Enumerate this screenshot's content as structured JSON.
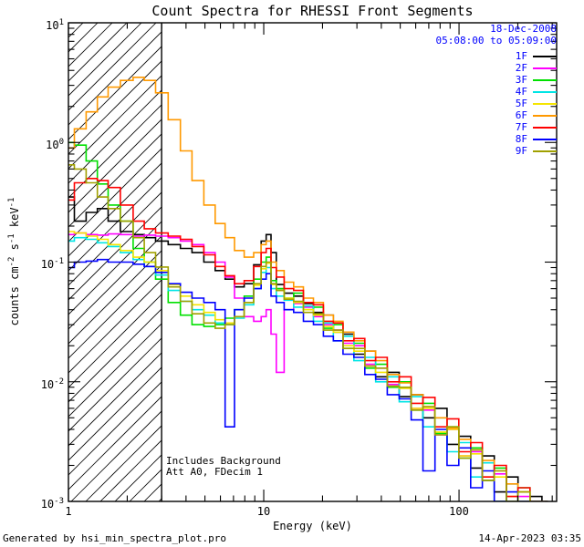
{
  "title": "Count Spectra for RHESSI Front Segments",
  "date_label": "18-Dec-2008",
  "time_range": "05:08:00 to 05:09:00",
  "annotations": {
    "line1": "Includes Background",
    "line2": "Att A0, FDecim 1"
  },
  "footer": {
    "left": "Generated by hsi_min_spectra_plot.pro",
    "right": "14-Apr-2023 03:35"
  },
  "axes": {
    "xlabel": "Energy (keV)",
    "ylabel_parts": {
      "p1": "counts cm",
      "e1": "-2",
      "p2": " s",
      "e2": "-1",
      "p3": " keV",
      "e3": "-1"
    },
    "xtick_labels": [
      "1",
      "10",
      "100"
    ],
    "ytick_labels": [
      {
        "base": "10",
        "exp": "1"
      },
      {
        "base": "10",
        "exp": "0"
      },
      {
        "base": "10",
        "exp": "-1"
      },
      {
        "base": "10",
        "exp": "-2"
      },
      {
        "base": "10",
        "exp": "-3"
      }
    ]
  },
  "colors": {
    "annotation_blue": "#0000ff",
    "axis_black": "#000000"
  },
  "chart_data": {
    "type": "line",
    "title": "Count Spectra for RHESSI Front Segments",
    "xlabel": "Energy (keV)",
    "ylabel": "counts cm-2 s-1 keV-1",
    "xscale": "log",
    "yscale": "log",
    "xlim": [
      1,
      316
    ],
    "ylim": [
      0.001,
      10
    ],
    "grid": false,
    "legend_position": "top-right",
    "hatch_region_kev": [
      1,
      3
    ],
    "energies_kev": [
      1.0,
      1.15,
      1.32,
      1.5,
      1.7,
      2.0,
      2.3,
      2.6,
      3.0,
      3.5,
      4.0,
      4.6,
      5.3,
      6.0,
      6.7,
      7.5,
      8.4,
      9.4,
      10.0,
      10.6,
      11.2,
      12.0,
      13.5,
      15.0,
      17.0,
      19.0,
      21.5,
      24.0,
      27.0,
      31.0,
      35.0,
      40.0,
      46.0,
      53.0,
      61.0,
      70.0,
      81.0,
      93.0,
      107.0,
      123.0,
      141.0,
      163.0,
      187.0,
      215.0,
      248.0,
      285.0
    ],
    "series": [
      {
        "name": "1F",
        "color": "#000000",
        "values": [
          0.35,
          0.22,
          0.26,
          0.28,
          0.22,
          0.18,
          0.17,
          0.16,
          0.15,
          0.14,
          0.13,
          0.12,
          0.1,
          0.085,
          0.072,
          0.062,
          0.066,
          0.095,
          0.15,
          0.17,
          0.12,
          0.065,
          0.055,
          0.052,
          0.045,
          0.038,
          0.036,
          0.026,
          0.025,
          0.017,
          0.018,
          0.011,
          0.012,
          0.0075,
          0.0078,
          0.005,
          0.006,
          0.003,
          0.0035,
          0.0019,
          0.0024,
          0.0012,
          0.0016,
          0.0008,
          0.0011,
          0.0007
        ]
      },
      {
        "name": "2F",
        "color": "#ff00ff",
        "values": [
          0.17,
          0.175,
          0.17,
          0.168,
          0.172,
          0.17,
          0.165,
          0.168,
          0.165,
          0.16,
          0.15,
          0.14,
          0.12,
          0.1,
          0.075,
          0.05,
          0.035,
          0.032,
          0.035,
          0.04,
          0.025,
          0.012,
          0.04,
          0.045,
          0.042,
          0.035,
          0.03,
          0.027,
          0.021,
          0.02,
          0.014,
          0.013,
          0.0095,
          0.009,
          0.006,
          0.0058,
          0.0036,
          0.004,
          0.0024,
          0.0026,
          0.0015,
          0.0017,
          0.001,
          0.0011,
          0.0006,
          0.0009
        ]
      },
      {
        "name": "3F",
        "color": "#00e000",
        "values": [
          1.0,
          0.95,
          0.7,
          0.45,
          0.3,
          0.22,
          0.13,
          0.1,
          0.072,
          0.046,
          0.036,
          0.03,
          0.029,
          0.03,
          0.034,
          0.04,
          0.052,
          0.072,
          0.1,
          0.11,
          0.07,
          0.06,
          0.05,
          0.055,
          0.04,
          0.042,
          0.028,
          0.03,
          0.019,
          0.021,
          0.013,
          0.014,
          0.009,
          0.01,
          0.0058,
          0.0066,
          0.0037,
          0.0042,
          0.0023,
          0.0028,
          0.0015,
          0.0019,
          0.001,
          0.0013,
          0.0007,
          0.001
        ]
      },
      {
        "name": "4F",
        "color": "#00e5e5",
        "values": [
          0.15,
          0.16,
          0.155,
          0.145,
          0.135,
          0.12,
          0.105,
          0.092,
          0.078,
          0.058,
          0.047,
          0.04,
          0.036,
          0.031,
          0.03,
          0.034,
          0.044,
          0.06,
          0.082,
          0.09,
          0.06,
          0.052,
          0.048,
          0.042,
          0.043,
          0.032,
          0.031,
          0.022,
          0.024,
          0.015,
          0.016,
          0.01,
          0.011,
          0.0068,
          0.0075,
          0.0042,
          0.005,
          0.0026,
          0.0031,
          0.0016,
          0.0021,
          0.001,
          0.0014,
          0.0007,
          0.001,
          0.0005
        ]
      },
      {
        "name": "5F",
        "color": "#f5e500",
        "values": [
          0.18,
          0.175,
          0.165,
          0.155,
          0.14,
          0.125,
          0.11,
          0.1,
          0.085,
          0.065,
          0.052,
          0.044,
          0.038,
          0.033,
          0.031,
          0.035,
          0.046,
          0.064,
          0.088,
          0.098,
          0.065,
          0.058,
          0.05,
          0.046,
          0.04,
          0.036,
          0.029,
          0.026,
          0.02,
          0.018,
          0.0135,
          0.012,
          0.0092,
          0.0088,
          0.006,
          0.006,
          0.0038,
          0.004,
          0.0024,
          0.0025,
          0.0016,
          0.0016,
          0.0011,
          0.001,
          0.0008,
          0.0007
        ]
      },
      {
        "name": "6F",
        "color": "#ff9900",
        "values": [
          0.9,
          1.3,
          1.8,
          2.4,
          2.9,
          3.3,
          3.5,
          3.3,
          2.6,
          1.55,
          0.85,
          0.48,
          0.3,
          0.21,
          0.16,
          0.125,
          0.11,
          0.12,
          0.14,
          0.15,
          0.1,
          0.085,
          0.068,
          0.062,
          0.05,
          0.046,
          0.036,
          0.032,
          0.026,
          0.022,
          0.018,
          0.015,
          0.0115,
          0.0098,
          0.0078,
          0.0062,
          0.005,
          0.0041,
          0.0033,
          0.0027,
          0.0022,
          0.0018,
          0.0014,
          0.0012,
          0.001,
          0.0008
        ]
      },
      {
        "name": "7F",
        "color": "#ff0000",
        "values": [
          0.33,
          0.46,
          0.5,
          0.48,
          0.42,
          0.3,
          0.22,
          0.19,
          0.175,
          0.165,
          0.155,
          0.135,
          0.115,
          0.092,
          0.077,
          0.066,
          0.07,
          0.092,
          0.12,
          0.13,
          0.09,
          0.075,
          0.06,
          0.058,
          0.046,
          0.044,
          0.032,
          0.031,
          0.022,
          0.023,
          0.015,
          0.016,
          0.01,
          0.011,
          0.0066,
          0.0074,
          0.0042,
          0.0049,
          0.0026,
          0.0031,
          0.0016,
          0.002,
          0.0011,
          0.0013,
          0.0008,
          0.0009
        ]
      },
      {
        "name": "8F",
        "color": "#0000ff",
        "values": [
          0.09,
          0.1,
          0.102,
          0.105,
          0.1,
          0.1,
          0.096,
          0.092,
          0.082,
          0.066,
          0.056,
          0.05,
          0.046,
          0.04,
          0.0042,
          0.04,
          0.05,
          0.06,
          0.072,
          0.08,
          0.052,
          0.046,
          0.04,
          0.038,
          0.032,
          0.03,
          0.024,
          0.022,
          0.017,
          0.016,
          0.0115,
          0.0105,
          0.0078,
          0.0072,
          0.0048,
          0.0018,
          0.004,
          0.002,
          0.0028,
          0.0013,
          0.0018,
          0.0008,
          0.0012,
          0.0006,
          0.0009,
          0.0006
        ]
      },
      {
        "name": "9F",
        "color": "#a0a000",
        "values": [
          0.65,
          0.6,
          0.46,
          0.35,
          0.28,
          0.22,
          0.16,
          0.12,
          0.091,
          0.062,
          0.047,
          0.037,
          0.031,
          0.028,
          0.03,
          0.035,
          0.046,
          0.066,
          0.092,
          0.1,
          0.066,
          0.058,
          0.049,
          0.047,
          0.038,
          0.037,
          0.027,
          0.027,
          0.019,
          0.019,
          0.0135,
          0.013,
          0.0092,
          0.009,
          0.0058,
          0.0062,
          0.0036,
          0.0042,
          0.0023,
          0.0027,
          0.0015,
          0.0018,
          0.001,
          0.0012,
          0.0007,
          0.0009
        ]
      }
    ]
  }
}
